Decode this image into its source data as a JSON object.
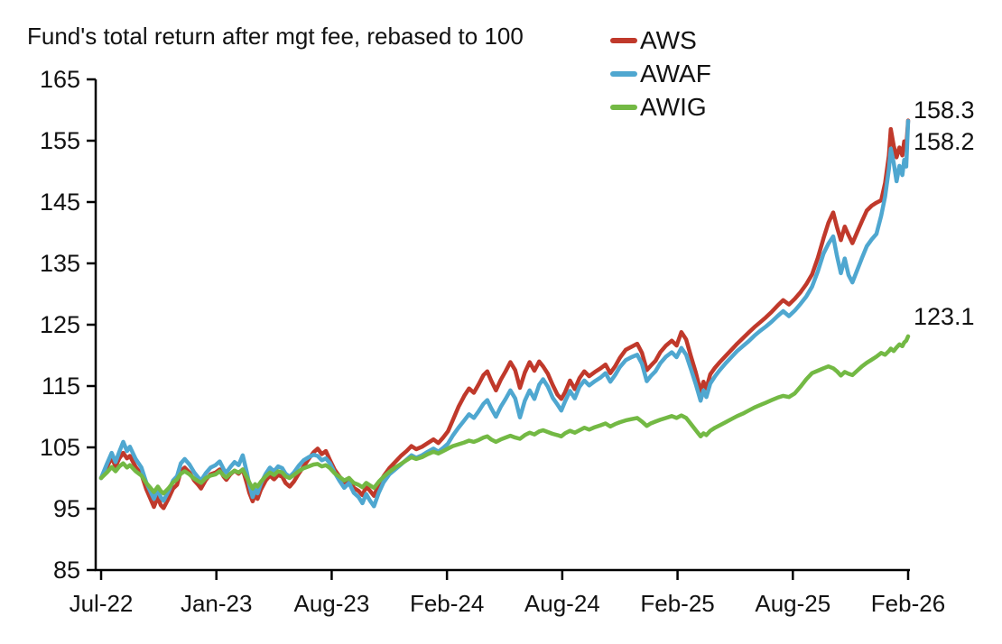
{
  "chart_data": {
    "type": "line",
    "title": "Fund's total return after mgt fee, rebased to 100",
    "xlabel": "",
    "ylabel": "",
    "x_unit": "months since Jul-2022",
    "ylim": [
      85,
      165
    ],
    "grid": false,
    "legend_position": "top-right",
    "y_ticks": [
      165,
      155,
      145,
      135,
      125,
      115,
      105,
      95,
      85
    ],
    "x_ticks": [
      {
        "label": "Jul-22",
        "month": 0
      },
      {
        "label": "Jan-23",
        "month": 6
      },
      {
        "label": "Aug-23",
        "month": 13
      },
      {
        "label": "Feb-24",
        "month": 19
      },
      {
        "label": "Aug-24",
        "month": 25
      },
      {
        "label": "Feb-25",
        "month": 31
      },
      {
        "label": "Aug-25",
        "month": 37
      },
      {
        "label": "Feb-26",
        "month": 43
      }
    ],
    "x": [
      0,
      0.3,
      0.55,
      0.75,
      0.95,
      1.15,
      1.35,
      1.5,
      1.8,
      2.1,
      2.35,
      2.6,
      2.75,
      2.95,
      3.1,
      3.25,
      3.5,
      3.75,
      3.95,
      4.15,
      4.35,
      4.6,
      4.85,
      5.05,
      5.2,
      5.45,
      5.7,
      5.95,
      6.2,
      6.45,
      6.6,
      6.85,
      7.1,
      7.35,
      7.6,
      7.85,
      8.0,
      8.2,
      8.35,
      8.5,
      8.7,
      9.0,
      9.25,
      9.5,
      9.75,
      10.0,
      10.2,
      10.45,
      10.7,
      11.0,
      11.3,
      11.6,
      11.9,
      12.15,
      12.4,
      12.65,
      12.9,
      13.15,
      13.4,
      13.65,
      13.9,
      14.15,
      14.4,
      14.6,
      14.8,
      15.0,
      15.2,
      15.45,
      15.7,
      16.0,
      16.3,
      16.6,
      16.9,
      17.15,
      17.4,
      17.7,
      18.0,
      18.3,
      18.55,
      18.8,
      19.05,
      19.3,
      19.6,
      19.9,
      20.15,
      20.4,
      20.65,
      20.9,
      21.1,
      21.3,
      21.55,
      21.8,
      22.05,
      22.3,
      22.55,
      22.8,
      23.05,
      23.3,
      23.55,
      23.8,
      24.0,
      24.25,
      24.5,
      24.75,
      24.95,
      25.15,
      25.4,
      25.65,
      25.9,
      26.15,
      26.4,
      26.7,
      27.0,
      27.25,
      27.5,
      27.75,
      28.0,
      28.3,
      28.6,
      28.9,
      29.15,
      29.4,
      29.6,
      29.85,
      30.1,
      30.4,
      30.7,
      30.95,
      31.2,
      31.45,
      31.7,
      31.95,
      32.2,
      32.35,
      32.5,
      32.7,
      32.95,
      33.2,
      33.5,
      33.8,
      34.1,
      34.4,
      34.7,
      35.0,
      35.3,
      35.6,
      35.9,
      36.2,
      36.5,
      36.8,
      37.1,
      37.4,
      37.7,
      38.0,
      38.3,
      38.6,
      38.85,
      39.1,
      39.3,
      39.5,
      39.7,
      39.9,
      40.1,
      40.35,
      40.6,
      40.85,
      41.1,
      41.35,
      41.6,
      41.8,
      42.0,
      42.1,
      42.25,
      42.4,
      42.55,
      42.7,
      42.8,
      42.9,
      43
    ],
    "series": [
      {
        "name": "AWS",
        "color": "#c0392b",
        "end_label": "158.3",
        "values": [
          100,
          101.8,
          103.3,
          101.9,
          103.2,
          104.1,
          103.2,
          103.6,
          101.8,
          100.6,
          98.2,
          96.4,
          95.3,
          96.9,
          95.6,
          95.1,
          96.6,
          98.3,
          98.9,
          101.1,
          101.7,
          100.9,
          99.6,
          98.9,
          98.3,
          99.7,
          100.6,
          100.9,
          101.4,
          100.2,
          99.7,
          100.6,
          101.2,
          100.7,
          101.4,
          99.1,
          97.6,
          96.2,
          97.3,
          96.6,
          98.1,
          99.6,
          100.4,
          99.8,
          100.5,
          100.2,
          99.2,
          98.6,
          99.4,
          100.7,
          101.9,
          103.1,
          104.2,
          104.8,
          103.9,
          104.4,
          102.9,
          101.4,
          100.3,
          99.3,
          100.0,
          98.4,
          97.9,
          97.2,
          98.6,
          97.9,
          97.1,
          98.9,
          100.3,
          101.6,
          102.6,
          103.6,
          104.4,
          105.2,
          104.7,
          105.1,
          105.7,
          106.3,
          105.7,
          106.6,
          107.6,
          109.4,
          111.6,
          113.4,
          114.6,
          113.9,
          115.3,
          116.8,
          117.4,
          115.9,
          114.3,
          116.0,
          117.4,
          118.9,
          117.6,
          114.7,
          117.2,
          118.9,
          117.5,
          119.0,
          118.2,
          117.0,
          115.2,
          113.6,
          112.9,
          114.0,
          115.9,
          114.5,
          116.3,
          117.4,
          116.6,
          117.3,
          117.9,
          118.5,
          117.1,
          118.2,
          119.6,
          120.9,
          121.4,
          121.9,
          120.4,
          117.6,
          118.3,
          119.1,
          120.5,
          121.6,
          122.4,
          121.6,
          123.8,
          122.6,
          119.8,
          117.2,
          114.1,
          115.7,
          114.6,
          116.9,
          118.0,
          118.9,
          119.9,
          120.9,
          121.9,
          122.8,
          123.7,
          124.6,
          125.4,
          126.2,
          127.1,
          128.1,
          129.0,
          128.3,
          129.2,
          130.3,
          131.6,
          133.2,
          135.9,
          139.1,
          141.6,
          143.3,
          140.9,
          138.8,
          141.0,
          139.6,
          138.3,
          140.1,
          141.9,
          143.6,
          144.4,
          144.9,
          145.3,
          148.1,
          152.6,
          156.9,
          154.2,
          152.3,
          153.9,
          152.6,
          154.9,
          153.8,
          158.3
        ]
      },
      {
        "name": "AWAF",
        "color": "#4fa7d0",
        "end_label": "158.2",
        "values": [
          100,
          102.3,
          104.1,
          102.6,
          104.3,
          105.9,
          104.4,
          105.1,
          103.1,
          101.7,
          99.3,
          97.6,
          96.6,
          98.1,
          96.9,
          96.3,
          97.8,
          99.6,
          100.3,
          102.4,
          103.1,
          102.2,
          100.9,
          100.1,
          99.6,
          100.8,
          101.7,
          102.1,
          102.7,
          101.4,
          100.9,
          101.8,
          102.6,
          102.1,
          103.7,
          100.9,
          98.9,
          96.9,
          98.1,
          97.5,
          99.1,
          100.7,
          101.7,
          101.1,
          101.9,
          101.6,
          100.7,
          100.2,
          100.9,
          102.0,
          102.9,
          103.4,
          103.8,
          103.6,
          102.9,
          103.2,
          102.4,
          100.9,
          99.6,
          98.4,
          99.2,
          97.6,
          96.9,
          95.9,
          97.4,
          96.3,
          95.4,
          97.6,
          99.3,
          100.6,
          101.4,
          102.2,
          103.0,
          103.7,
          103.3,
          103.7,
          104.3,
          104.8,
          104.3,
          104.9,
          105.6,
          106.9,
          108.2,
          109.4,
          110.4,
          109.8,
          110.9,
          112.1,
          112.7,
          111.4,
          110.0,
          111.6,
          112.9,
          114.3,
          113.0,
          109.9,
          112.6,
          114.3,
          112.9,
          115.2,
          116.1,
          114.9,
          113.1,
          112.0,
          111.0,
          112.5,
          114.2,
          113.0,
          114.9,
          115.9,
          115.1,
          115.8,
          116.4,
          117.1,
          115.7,
          116.8,
          118.1,
          119.2,
          119.7,
          120.1,
          118.6,
          115.8,
          116.6,
          117.4,
          118.7,
          119.8,
          120.5,
          119.7,
          121.2,
          120.1,
          117.7,
          115.3,
          112.6,
          114.3,
          113.2,
          115.4,
          116.6,
          117.6,
          118.7,
          119.7,
          120.7,
          121.5,
          122.3,
          123.2,
          124.0,
          124.7,
          125.5,
          126.4,
          127.2,
          126.4,
          127.3,
          128.4,
          129.6,
          131.2,
          133.7,
          136.6,
          138.2,
          139.4,
          136.2,
          133.4,
          135.8,
          133.1,
          131.9,
          133.9,
          135.9,
          137.8,
          138.9,
          139.8,
          142.8,
          145.9,
          150.4,
          153.7,
          151.4,
          148.4,
          150.9,
          149.4,
          151.9,
          150.8,
          158.2
        ]
      },
      {
        "name": "AWIG",
        "color": "#73b944",
        "end_label": "123.1",
        "values": [
          100,
          100.9,
          101.8,
          101.1,
          101.9,
          102.4,
          101.7,
          102.1,
          101.1,
          100.4,
          99.2,
          98.3,
          97.7,
          98.6,
          97.9,
          97.5,
          98.3,
          99.3,
          99.8,
          100.7,
          101.1,
          100.6,
          99.9,
          99.5,
          99.2,
          100.0,
          100.4,
          100.6,
          101.1,
          100.4,
          100.1,
          100.7,
          101.2,
          100.9,
          101.4,
          100.1,
          99.3,
          98.3,
          99.0,
          98.6,
          99.4,
          100.3,
          100.9,
          100.5,
          101.1,
          100.9,
          100.3,
          100.0,
          100.5,
          101.1,
          101.6,
          101.9,
          102.2,
          102.3,
          101.9,
          102.1,
          101.6,
          100.8,
          100.2,
          99.6,
          100.0,
          99.2,
          98.9,
          98.5,
          99.2,
          98.8,
          98.4,
          99.4,
          100.2,
          101.0,
          101.7,
          102.3,
          102.9,
          103.4,
          103.1,
          103.4,
          103.9,
          104.3,
          104.0,
          104.4,
          104.8,
          105.2,
          105.5,
          105.8,
          106.1,
          105.9,
          106.2,
          106.6,
          106.8,
          106.3,
          105.9,
          106.3,
          106.6,
          106.9,
          106.6,
          106.4,
          107.0,
          107.4,
          107.1,
          107.6,
          107.8,
          107.5,
          107.2,
          107.0,
          106.8,
          107.3,
          107.7,
          107.4,
          107.8,
          108.2,
          107.9,
          108.3,
          108.6,
          108.9,
          108.4,
          108.8,
          109.1,
          109.4,
          109.6,
          109.8,
          109.2,
          108.5,
          108.9,
          109.2,
          109.5,
          109.8,
          110.1,
          109.8,
          110.2,
          109.8,
          108.8,
          107.8,
          106.8,
          107.3,
          107.0,
          107.7,
          108.2,
          108.6,
          109.1,
          109.6,
          110.1,
          110.5,
          111.0,
          111.5,
          111.9,
          112.3,
          112.7,
          113.1,
          113.4,
          113.2,
          113.8,
          114.9,
          116.1,
          117.1,
          117.5,
          117.9,
          118.2,
          117.9,
          117.4,
          116.7,
          117.3,
          117.0,
          116.8,
          117.5,
          118.2,
          118.8,
          119.3,
          119.8,
          120.4,
          120.1,
          120.7,
          121.1,
          120.7,
          121.3,
          121.8,
          121.5,
          122.1,
          122.4,
          123.1
        ]
      }
    ]
  }
}
